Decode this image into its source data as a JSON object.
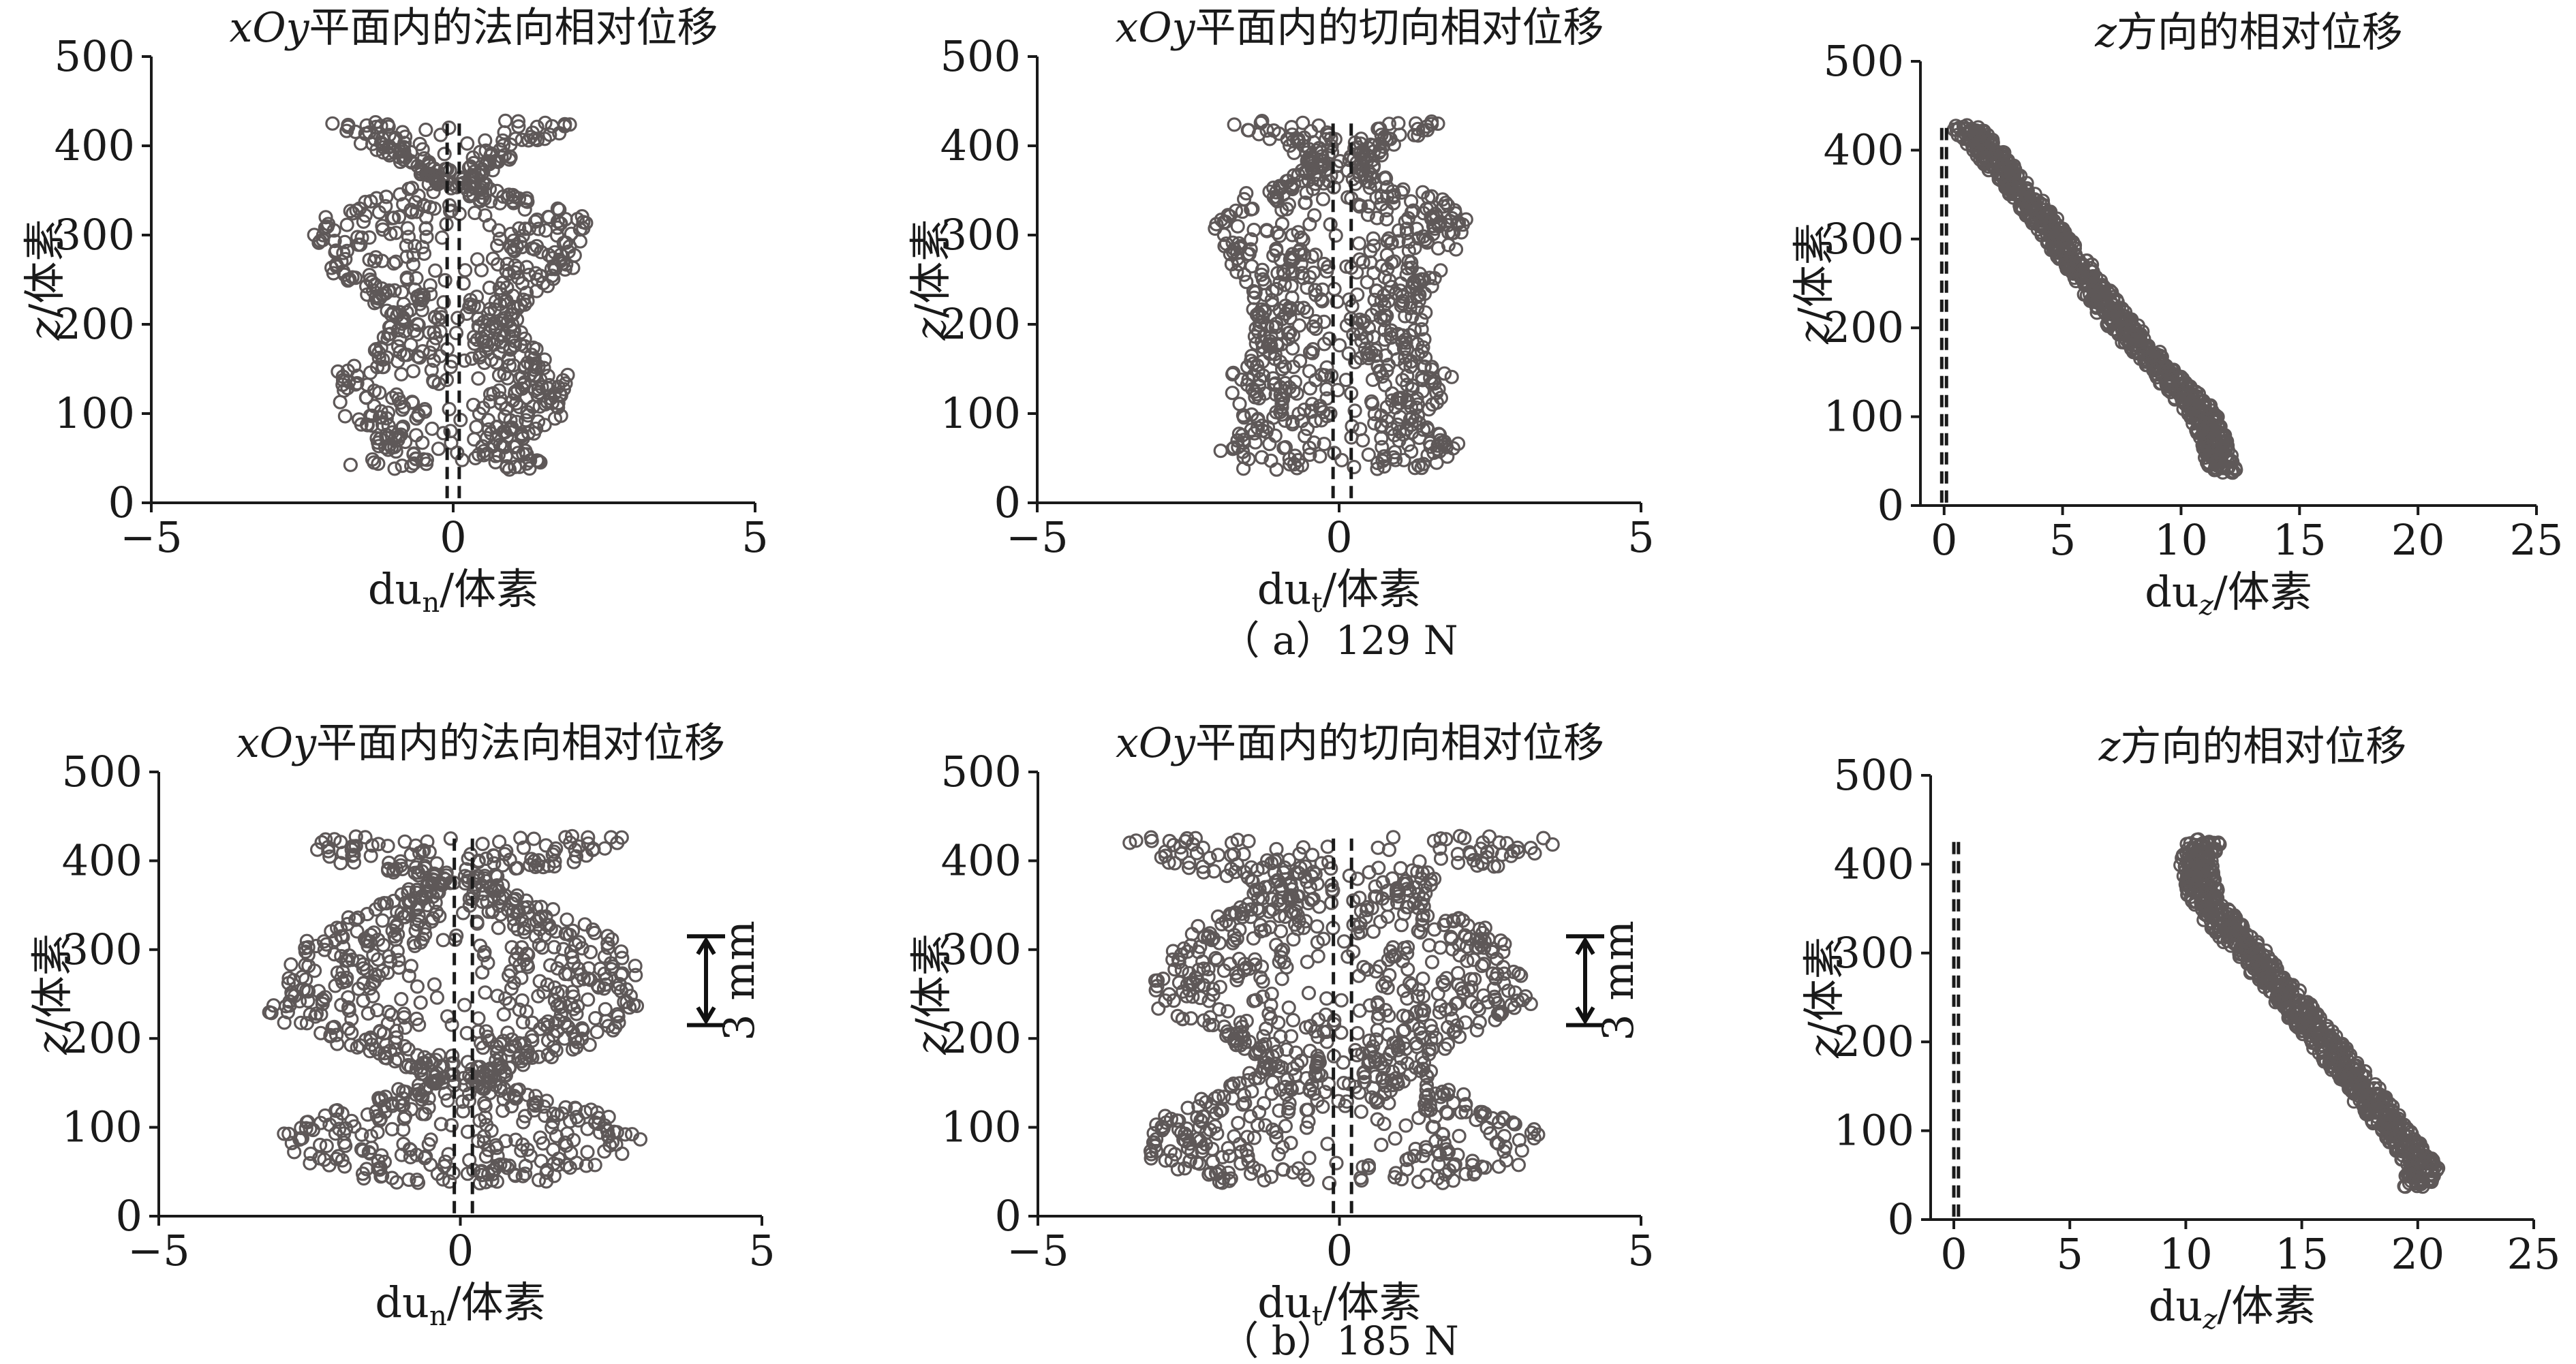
{
  "figure": {
    "rows": [
      {
        "caption_open": "（",
        "caption_letter": "a",
        "caption_close": "）",
        "caption_value": "129",
        "caption_unit": "N",
        "panels": [
          {
            "title_parts": [
              {
                "text": "x",
                "italic": true
              },
              {
                "text": "O",
                "italic": true
              },
              {
                "text": "y",
                "italic": true
              },
              {
                "text": "平面内的法向相对位移",
                "italic": false
              }
            ],
            "xlabel_parts": [
              {
                "text": "du",
                "italic": false
              },
              {
                "text": "n",
                "sub": true
              },
              {
                "text": "/体素",
                "italic": false
              }
            ],
            "ylabel_parts": [
              {
                "text": "z",
                "italic": true
              },
              {
                "text": "/体素",
                "italic": false
              }
            ]
          },
          {
            "title_parts": [
              {
                "text": "x",
                "italic": true
              },
              {
                "text": "O",
                "italic": true
              },
              {
                "text": "y",
                "italic": true
              },
              {
                "text": "平面内的切向相对位移",
                "italic": false
              }
            ],
            "xlabel_parts": [
              {
                "text": "du",
                "italic": false
              },
              {
                "text": "t",
                "sub": true
              },
              {
                "text": "/体素",
                "italic": false
              }
            ],
            "ylabel_parts": [
              {
                "text": "z",
                "italic": true
              },
              {
                "text": "/体素",
                "italic": false
              }
            ]
          },
          {
            "title_parts": [
              {
                "text": "z",
                "italic": true
              },
              {
                "text": "方向的相对位移",
                "italic": false
              }
            ],
            "xlabel_parts": [
              {
                "text": "du",
                "italic": false
              },
              {
                "text": "z",
                "sub": true,
                "italic": true
              },
              {
                "text": "/体素",
                "italic": false
              }
            ],
            "ylabel_parts": [
              {
                "text": "z",
                "italic": true
              },
              {
                "text": "/体素",
                "italic": false
              }
            ]
          }
        ]
      },
      {
        "caption_open": "（",
        "caption_letter": "b",
        "caption_close": "）",
        "caption_value": "185",
        "caption_unit": "N",
        "panels": [
          {
            "title_parts": [
              {
                "text": "x",
                "italic": true
              },
              {
                "text": "O",
                "italic": true
              },
              {
                "text": "y",
                "italic": true
              },
              {
                "text": "平面内的法向相对位移",
                "italic": false
              }
            ],
            "xlabel_parts": [
              {
                "text": "du",
                "italic": false
              },
              {
                "text": "n",
                "sub": true
              },
              {
                "text": "/体素",
                "italic": false
              }
            ],
            "ylabel_parts": [
              {
                "text": "z",
                "italic": true
              },
              {
                "text": "/体素",
                "italic": false
              }
            ],
            "annotation": "3 mm"
          },
          {
            "title_parts": [
              {
                "text": "x",
                "italic": true
              },
              {
                "text": "O",
                "italic": true
              },
              {
                "text": "y",
                "italic": true
              },
              {
                "text": "平面内的切向相对位移",
                "italic": false
              }
            ],
            "xlabel_parts": [
              {
                "text": "du",
                "italic": false
              },
              {
                "text": "t",
                "sub": true
              },
              {
                "text": "/体素",
                "italic": false
              }
            ],
            "ylabel_parts": [
              {
                "text": "z",
                "italic": true
              },
              {
                "text": "/体素",
                "italic": false
              }
            ],
            "annotation": "3 mm"
          },
          {
            "title_parts": [
              {
                "text": "z",
                "italic": true
              },
              {
                "text": "方向的相对位移",
                "italic": false
              }
            ],
            "xlabel_parts": [
              {
                "text": "du",
                "italic": false
              },
              {
                "text": "z",
                "sub": true,
                "italic": true
              },
              {
                "text": "/体素",
                "italic": false
              }
            ],
            "ylabel_parts": [
              {
                "text": "z",
                "italic": true
              },
              {
                "text": "/体素",
                "italic": false
              }
            ]
          }
        ]
      }
    ]
  },
  "chart_data": [
    {
      "panel": "a-1",
      "type": "scatter",
      "marker": "open-circle",
      "xlim": [
        -5,
        5
      ],
      "xticks": [
        -5,
        0,
        5
      ],
      "ylim": [
        0,
        500
      ],
      "yticks": [
        0,
        100,
        200,
        300,
        400,
        500
      ],
      "z_range": [
        40,
        425
      ],
      "envelope": {
        "z": [
          40,
          60,
          80,
          100,
          140,
          180,
          200,
          240,
          260,
          300,
          320,
          340,
          360,
          380,
          400,
          425
        ],
        "half_width": [
          1.7,
          1.2,
          1.4,
          1.8,
          2.0,
          1.3,
          1.0,
          1.5,
          2.0,
          2.3,
          2.2,
          1.4,
          0.3,
          0.8,
          1.5,
          2.0
        ]
      },
      "points_per_row": 10,
      "reference_lines_x": [
        -0.1,
        0.1
      ]
    },
    {
      "panel": "a-2",
      "type": "scatter",
      "marker": "open-circle",
      "xlim": [
        -5,
        5
      ],
      "xticks": [
        -5,
        0,
        5
      ],
      "ylim": [
        0,
        500
      ],
      "yticks": [
        0,
        100,
        200,
        300,
        400,
        500
      ],
      "z_range": [
        40,
        425
      ],
      "envelope": {
        "z": [
          40,
          60,
          80,
          100,
          140,
          160,
          200,
          240,
          280,
          320,
          340,
          360,
          380,
          400,
          425
        ],
        "half_width": [
          1.8,
          2.2,
          1.5,
          1.6,
          1.9,
          1.5,
          1.4,
          1.5,
          1.9,
          2.2,
          1.8,
          0.9,
          0.5,
          1.0,
          1.8
        ]
      },
      "points_per_row": 10,
      "reference_lines_x": [
        -0.1,
        0.2
      ]
    },
    {
      "panel": "a-3",
      "type": "scatter",
      "marker": "open-circle",
      "xlim": [
        -1,
        25
      ],
      "xticks": [
        0,
        5,
        10,
        15,
        20,
        25
      ],
      "ylim": [
        0,
        500
      ],
      "yticks": [
        0,
        100,
        200,
        300,
        400,
        500
      ],
      "z_range": [
        40,
        425
      ],
      "trend": {
        "z": [
          40,
          100,
          200,
          300,
          400,
          425
        ],
        "x": [
          11.8,
          11.0,
          7.6,
          4.8,
          1.8,
          1.0
        ]
      },
      "band_half_width": 0.6,
      "points_per_row": 10,
      "reference_lines_x": [
        -0.1,
        0.1
      ]
    },
    {
      "panel": "b-1",
      "type": "scatter",
      "marker": "open-circle",
      "xlim": [
        -5,
        5
      ],
      "xticks": [
        -5,
        0,
        5
      ],
      "ylim": [
        0,
        500
      ],
      "yticks": [
        0,
        100,
        200,
        300,
        400,
        500
      ],
      "z_range": [
        40,
        425
      ],
      "envelope": {
        "z": [
          40,
          60,
          90,
          120,
          150,
          170,
          200,
          230,
          260,
          300,
          330,
          360,
          380,
          400,
          425
        ],
        "half_width": [
          1.5,
          2.5,
          3.1,
          2.2,
          0.5,
          1.1,
          2.4,
          3.2,
          3.0,
          2.8,
          2.1,
          1.0,
          0.5,
          2.0,
          3.0
        ]
      },
      "points_per_row": 12,
      "reference_lines_x": [
        -0.1,
        0.2
      ]
    },
    {
      "panel": "b-2",
      "type": "scatter",
      "marker": "open-circle",
      "xlim": [
        -5,
        5
      ],
      "xticks": [
        -5,
        0,
        5
      ],
      "ylim": [
        0,
        500
      ],
      "yticks": [
        0,
        100,
        200,
        300,
        400,
        500
      ],
      "z_range": [
        40,
        425
      ],
      "envelope": {
        "z": [
          40,
          70,
          100,
          140,
          170,
          200,
          240,
          280,
          320,
          360,
          380,
          400,
          420
        ],
        "half_width": [
          2.0,
          3.5,
          3.2,
          2.0,
          1.3,
          2.0,
          3.2,
          3.0,
          2.6,
          1.4,
          1.6,
          3.0,
          3.6
        ]
      },
      "points_per_row": 12,
      "reference_lines_x": [
        -0.1,
        0.2
      ]
    },
    {
      "panel": "b-3",
      "type": "scatter",
      "marker": "open-circle",
      "xlim": [
        -1,
        25
      ],
      "xticks": [
        0,
        5,
        10,
        15,
        20,
        25
      ],
      "ylim": [
        0,
        500
      ],
      "yticks": [
        0,
        100,
        200,
        300,
        400,
        500
      ],
      "z_range": [
        40,
        425
      ],
      "trend": {
        "z": [
          45,
          60,
          100,
          200,
          300,
          360,
          400,
          425
        ],
        "x": [
          20.0,
          20.2,
          19.0,
          16.0,
          12.8,
          10.8,
          10.4,
          10.8
        ]
      },
      "band_half_width": 0.7,
      "points_per_row": 10,
      "reference_lines_x": [
        0.0,
        0.2
      ]
    }
  ]
}
